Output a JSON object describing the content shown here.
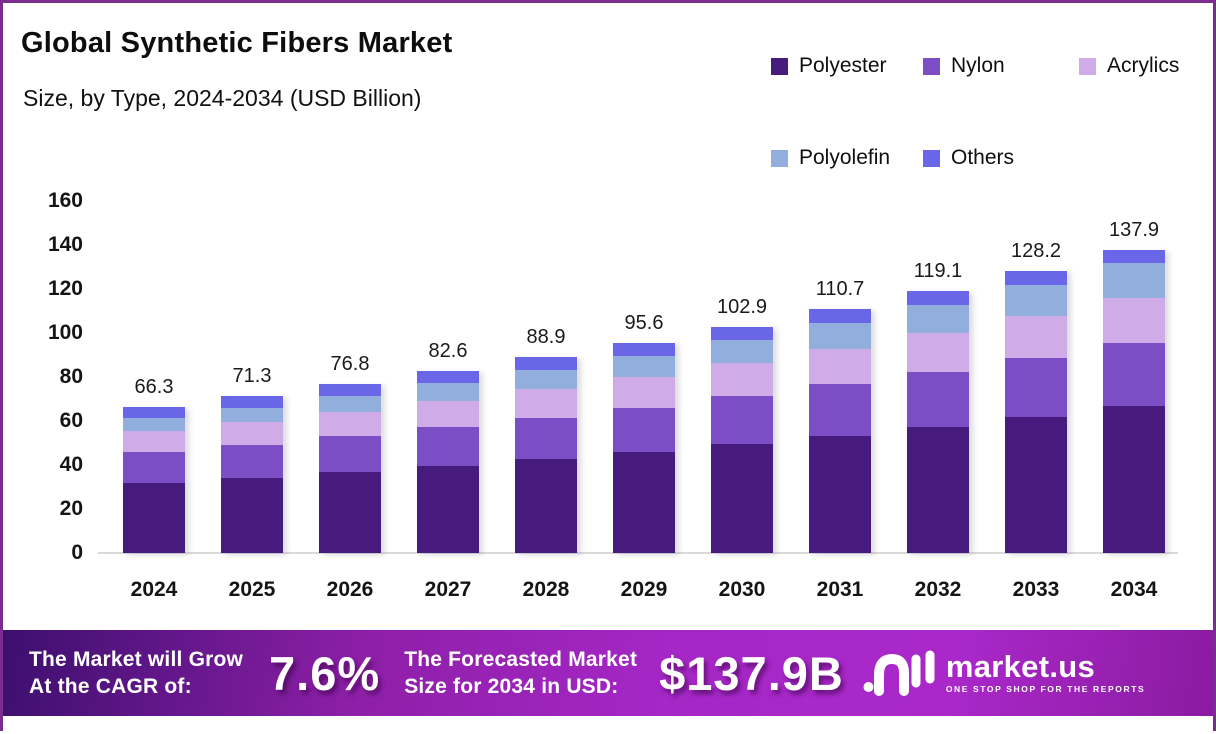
{
  "header": {
    "title": "Global Synthetic Fibers Market",
    "subtitle": "Size, by Type, 2024-2034 (USD Billion)"
  },
  "chart_data": {
    "type": "bar",
    "stacked": true,
    "title": "Global Synthetic Fibers Market",
    "subtitle": "Size, by Type, 2024-2034 (USD Billion)",
    "unit": "USD Billion",
    "categories": [
      "2024",
      "2025",
      "2026",
      "2027",
      "2028",
      "2029",
      "2030",
      "2031",
      "2032",
      "2033",
      "2034"
    ],
    "totals": [
      66.3,
      71.3,
      76.8,
      82.6,
      88.9,
      95.6,
      102.9,
      110.7,
      119.1,
      128.2,
      137.9
    ],
    "series": [
      {
        "name": "Polyester",
        "color": "#471b7d",
        "values": [
          31.8,
          34.2,
          36.9,
          39.7,
          42.7,
          45.9,
          49.5,
          53.3,
          57.4,
          61.9,
          66.7
        ]
      },
      {
        "name": "Nylon",
        "color": "#7c4ec6",
        "values": [
          14.0,
          15.1,
          16.2,
          17.4,
          18.7,
          20.1,
          21.7,
          23.3,
          25.0,
          26.9,
          28.9
        ]
      },
      {
        "name": "Acrylics",
        "color": "#cfabe8",
        "values": [
          9.7,
          10.4,
          11.2,
          12.1,
          13.0,
          14.0,
          15.1,
          16.2,
          17.5,
          18.8,
          20.2
        ]
      },
      {
        "name": "Polyolefin",
        "color": "#92aedc",
        "values": [
          5.8,
          6.4,
          7.1,
          7.9,
          8.7,
          9.6,
          10.6,
          11.8,
          13.0,
          14.4,
          15.9
        ]
      },
      {
        "name": "Others",
        "color": "#6a66e8",
        "values": [
          5.0,
          5.2,
          5.4,
          5.5,
          5.8,
          6.0,
          6.0,
          6.1,
          6.2,
          6.2,
          6.2
        ]
      }
    ],
    "ylim": [
      0,
      160
    ],
    "yticks": [
      0,
      20,
      40,
      60,
      80,
      100,
      120,
      140,
      160
    ],
    "legend_position": "top-right",
    "grid": false
  },
  "banner": {
    "cagr_label_line1": "The Market will Grow",
    "cagr_label_line2": "At the CAGR of:",
    "cagr_value": "7.6%",
    "forecast_label_line1": "The Forecasted Market",
    "forecast_label_line2": "Size for 2034 in USD:",
    "forecast_value": "$137.9B",
    "brand": "market.us",
    "brand_tagline": "ONE STOP SHOP FOR THE REPORTS"
  },
  "colors": {
    "border": "#7b2c8f",
    "banner_dark": "#3c0f6e",
    "banner_bright": "#aa28ca",
    "baseline": "#d9d9d9",
    "text": "#111111"
  }
}
